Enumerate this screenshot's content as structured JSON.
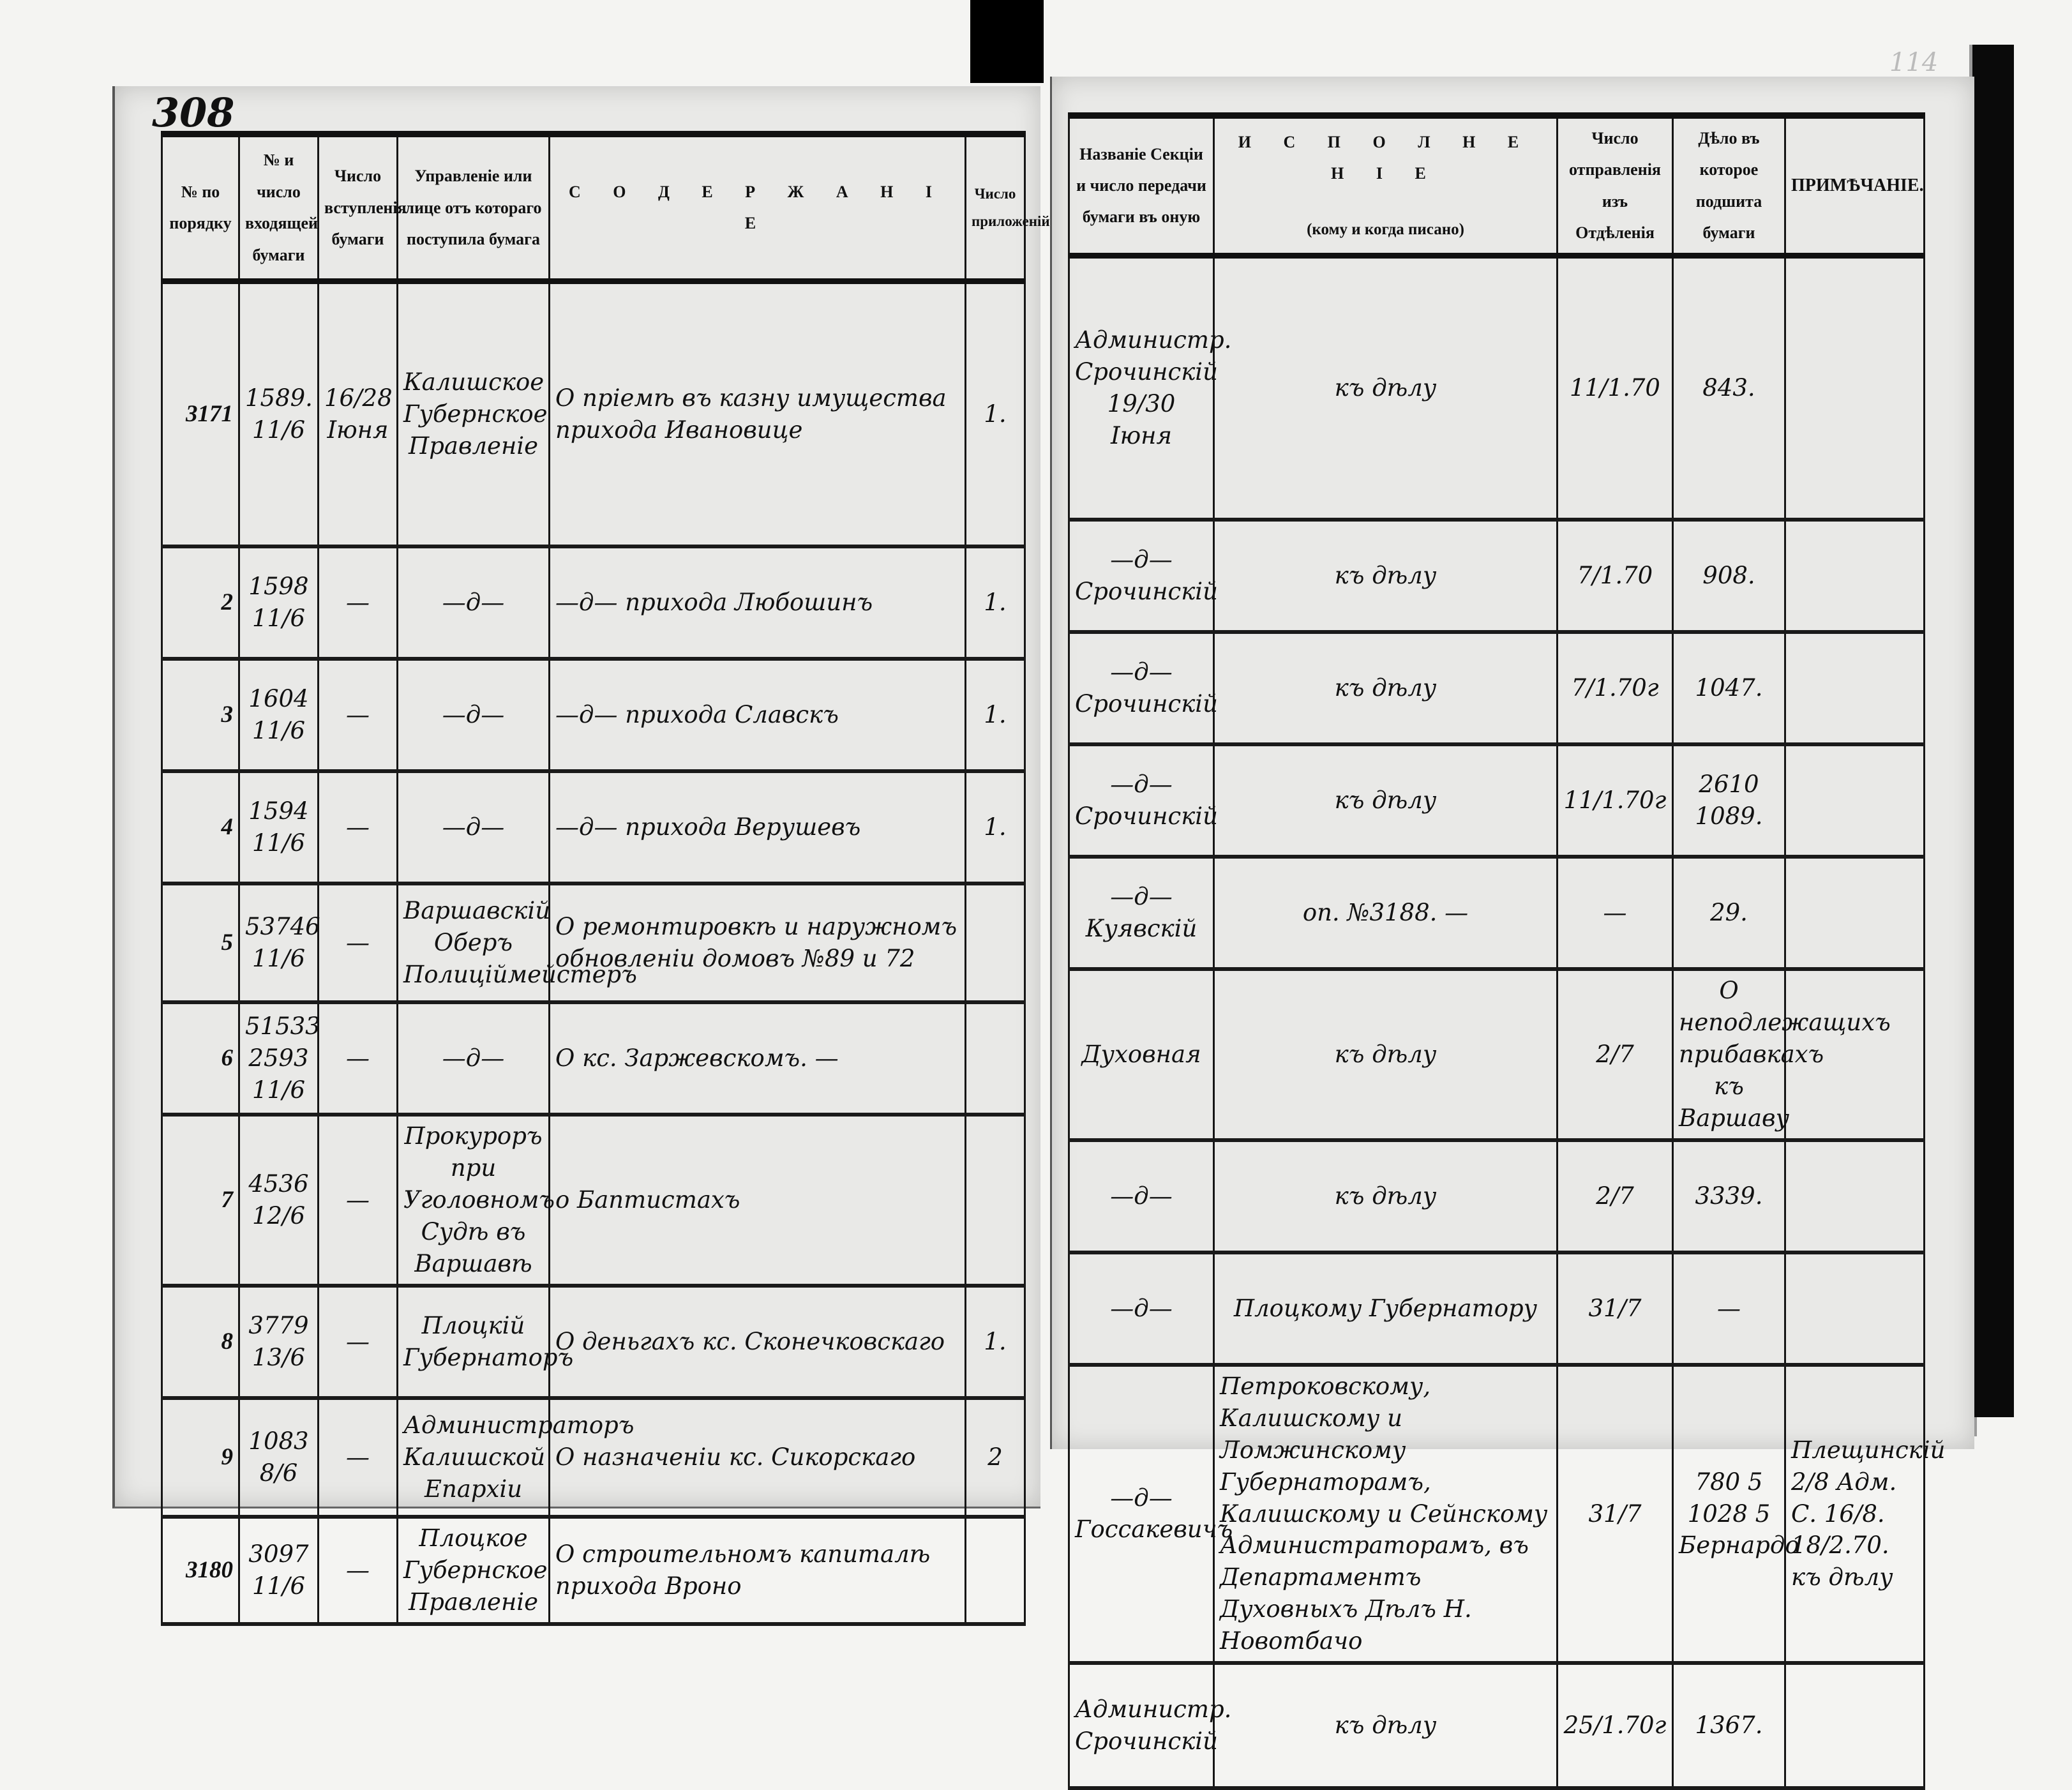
{
  "page_number": "308",
  "folio": "114",
  "left_page": {
    "headers": [
      "№ по порядку",
      "№ и число входящей бумаги",
      "Число вступленія бумаги",
      "Управленіе или лице отъ котораго поступила бумага",
      "С О Д Е Р Ж А Н І Е",
      "Число приложеній"
    ],
    "rows": [
      {
        "no": "3171",
        "incoming": "1589. 11/6",
        "date": "16/28 Іюня",
        "from": "Калишское Губернское Правленіе",
        "content": "О пріемѣ въ казну имущества прихода Ивановице",
        "attachments": "1."
      },
      {
        "no": "2",
        "incoming": "1598 11/6",
        "date": "—",
        "from": "—д—",
        "content": "—д— прихода Любошинъ",
        "attachments": "1."
      },
      {
        "no": "3",
        "incoming": "1604 11/6",
        "date": "—",
        "from": "—д—",
        "content": "—д— прихода Славскъ",
        "attachments": "1."
      },
      {
        "no": "4",
        "incoming": "1594 11/6",
        "date": "—",
        "from": "—д—",
        "content": "—д— прихода Верушевъ",
        "attachments": "1."
      },
      {
        "no": "5",
        "incoming": "53746 11/6",
        "date": "—",
        "from": "Варшавскій Оберъ Полиціймейстеръ",
        "content": "О ремонтировкѣ и наружномъ обновленіи домовъ №89 и 72",
        "attachments": ""
      },
      {
        "no": "6",
        "incoming": "51533 2593 11/6",
        "date": "—",
        "from": "—д—",
        "content": "О кс. Заржевскомъ. —",
        "attachments": ""
      },
      {
        "no": "7",
        "incoming": "4536 12/6",
        "date": "—",
        "from": "Прокуроръ при Уголовномъ Судѣ въ Варшавѣ",
        "content": "о Баптистахъ",
        "attachments": ""
      },
      {
        "no": "8",
        "incoming": "3779 13/6",
        "date": "—",
        "from": "Плоцкій Губернаторъ",
        "content": "О деньгахъ кс. Сконечковскаго",
        "attachments": "1."
      },
      {
        "no": "9",
        "incoming": "1083 8/6",
        "date": "—",
        "from": "Администраторъ Калишской Епархіи",
        "content": "О назначеніи кс. Сикорскаго",
        "attachments": "2"
      },
      {
        "no": "3180",
        "incoming": "3097 11/6",
        "date": "—",
        "from": "Плоцкое Губернское Правленіе",
        "content": "О строительномъ капиталѣ прихода Вроно",
        "attachments": ""
      }
    ]
  },
  "right_page": {
    "headers": [
      "Названіе Секціи и число передачи бумаги въ оную",
      "И С П О Л Н Е Н І Е",
      "(кому и когда писано)",
      "Число отправленія изъ Отдѣленія",
      "Дѣло въ которое подшита бумаги",
      "ПРИМѢЧАНІЕ."
    ],
    "rows": [
      {
        "section": "Администр. Срочинскій 19/30 Іюня",
        "execution": "къ дѣлу",
        "sent": "11/1.70",
        "file": "843.",
        "note": ""
      },
      {
        "section": "—д— Срочинскій",
        "execution": "къ дѣлу",
        "sent": "7/1.70",
        "file": "908.",
        "note": ""
      },
      {
        "section": "—д— Срочинскій",
        "execution": "къ дѣлу",
        "sent": "7/1.70г",
        "file": "1047.",
        "note": ""
      },
      {
        "section": "—д— Срочинскій",
        "execution": "къ дѣлу",
        "sent": "11/1.70г",
        "file": "2610 1089.",
        "note": ""
      },
      {
        "section": "—д— Куявскій",
        "execution": "оп. №3188. —",
        "sent": "—",
        "file": "29.",
        "note": ""
      },
      {
        "section": "Духовная",
        "execution": "къ дѣлу",
        "sent": "2/7",
        "file": "О неподлежащихъ прибавкахъ къ Варшаву",
        "note": ""
      },
      {
        "section": "—д—",
        "execution": "къ дѣлу",
        "sent": "2/7",
        "file": "3339.",
        "note": ""
      },
      {
        "section": "—д—",
        "execution": "Плоцкому Губернатору",
        "sent": "31/7",
        "file": "—",
        "note": ""
      },
      {
        "section": "—д— Госсакевичъ",
        "execution": "Петроковскому, Калишскому и Ломжинскому Губернаторамъ, Калишскому и Сейнскому Администраторамъ, въ Департаментъ Духовныхъ Дѣлъ Н. Новотбачо",
        "sent": "31/7",
        "file": "780 5 1028 5 Бернардо",
        "note": "Плещинскій 2/8 Адм. С. 16/8. 18/2.70. къ дѣлу"
      },
      {
        "section": "Администр. Срочинскій",
        "execution": "къ дѣлу",
        "sent": "25/1.70г",
        "file": "1367.",
        "note": ""
      }
    ]
  }
}
